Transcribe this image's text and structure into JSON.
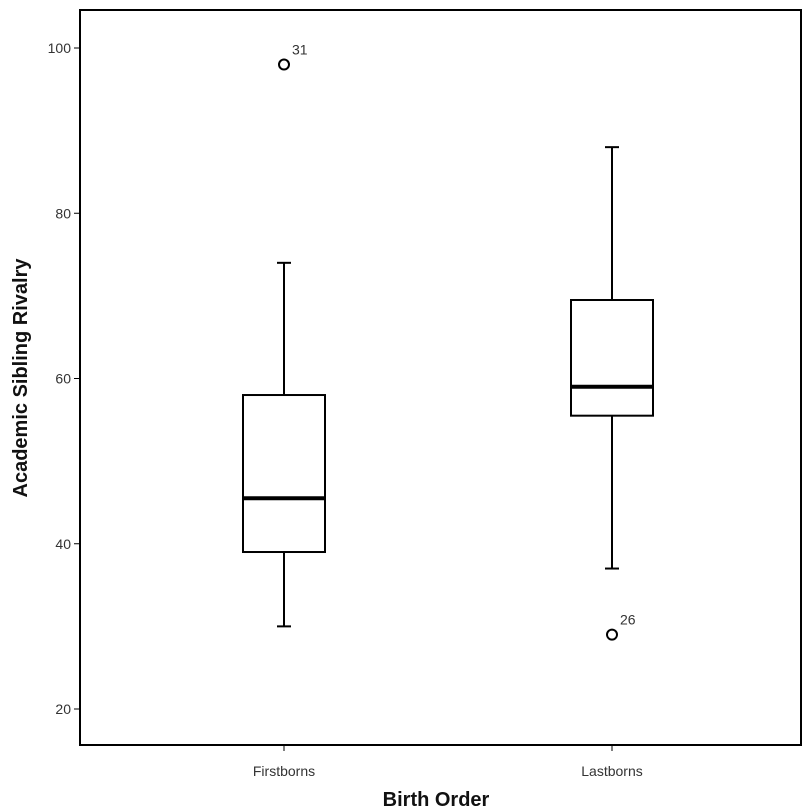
{
  "chart_data": {
    "type": "boxplot",
    "title": "",
    "xlabel": "Birth Order",
    "ylabel": "Academic Sibling Rivalry",
    "ylim": [
      18,
      105
    ],
    "yticks": [
      20,
      40,
      60,
      80,
      100
    ],
    "grid": false,
    "categories": [
      "Firstborns",
      "Lastborns"
    ],
    "boxes": [
      {
        "category": "Firstborns",
        "whisker_low": 30,
        "q1": 39,
        "median": 45.5,
        "q3": 58,
        "whisker_high": 74,
        "outliers": [
          {
            "value": 98,
            "label": "31"
          }
        ]
      },
      {
        "category": "Lastborns",
        "whisker_low": 37,
        "q1": 55.5,
        "median": 59,
        "q3": 69.5,
        "whisker_high": 88,
        "outliers": [
          {
            "value": 29,
            "label": "26"
          }
        ]
      }
    ],
    "colors": {
      "box_fill": "#ffffff",
      "stroke": "#000000",
      "plot_background": "#ffffff"
    }
  }
}
